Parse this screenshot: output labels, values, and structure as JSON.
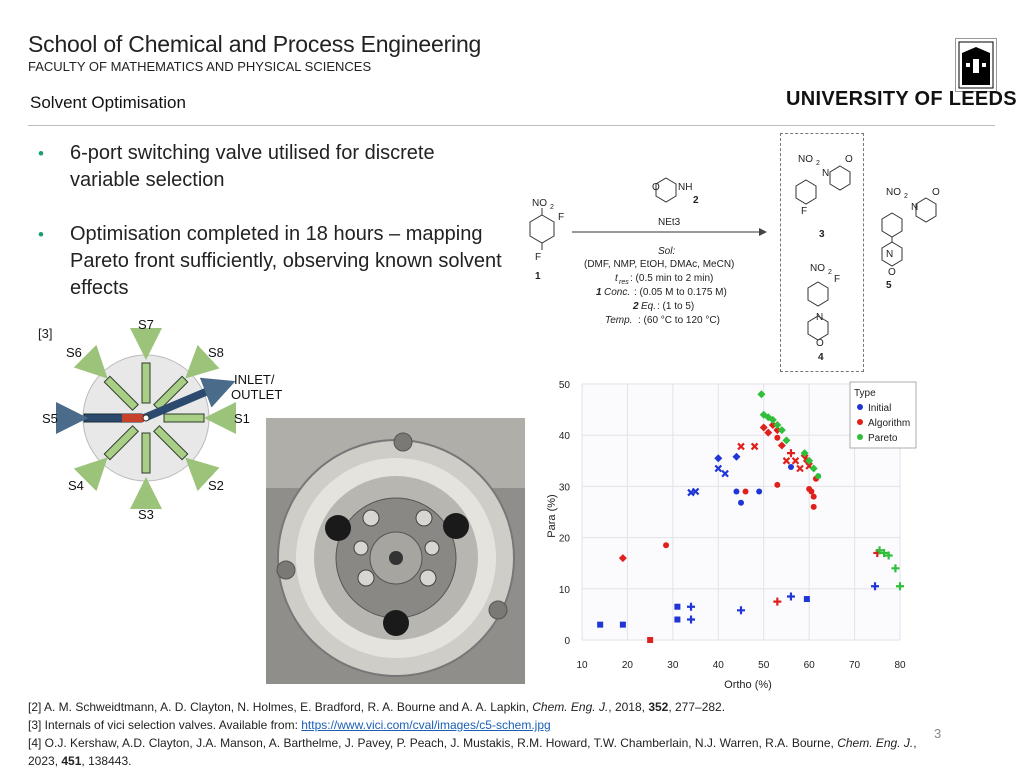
{
  "header": {
    "school": "School of Chemical and Process Engineering",
    "faculty": "FACULTY OF MATHEMATICS AND PHYSICAL SCIENCES",
    "slide_title": "Solvent Optimisation",
    "university": "UNIVERSITY OF LEEDS"
  },
  "bullets": [
    {
      "text": "6-port switching valve utilised for discrete variable selection"
    },
    {
      "text": "Optimisation completed in 18 hours – mapping Pareto front sufficiently, observing known solvent effects"
    }
  ],
  "valve": {
    "ref": "[3]",
    "ports": [
      "S7",
      "S8",
      "S1",
      "S2",
      "S3",
      "S4",
      "S5",
      "S6"
    ],
    "inlet_label_1": "INLET/",
    "inlet_label_2": "OUTLET"
  },
  "reaction": {
    "reagent_label": "2",
    "base": "NEt3",
    "sol": "Sol:",
    "solvents": "(DMF, NMP, EtOH, DMAc, MeCN)",
    "tres": "t",
    "tres_sub": "res",
    "tres_val": ": (0.5 min to 2 min)",
    "conc_num": "1",
    "conc_label": "Conc.",
    "conc_val": ": (0.05 M to 0.175 M)",
    "eq_num": "2",
    "eq_label": "Eq.",
    "eq_val": ": (1 to 5)",
    "temp_label": "Temp.",
    "temp_val": ": (60 °C to 120 °C)",
    "sm_label": "1",
    "p3_label": "3",
    "p4_label": "4",
    "p5_label": "5",
    "no2": "NO",
    "no2_sub": "2",
    "f": "F",
    "nh": "NH",
    "o": "O",
    "n": "N"
  },
  "references": {
    "r2_a": "[2] A. M. Schweidtmann, A. D. Clayton, N. Holmes, E. Bradford, R. A. Bourne and A. A. Lapkin, ",
    "r2_j": "Chem. Eng. J.",
    "r2_b": ", 2018, ",
    "r2_v": "352",
    "r2_c": ", 277–282.",
    "r3_a": "[3] Internals of vici selection valves. Available from: ",
    "r3_link": "https://www.vici.com/cval/images/c5-schem.jpg",
    "r4_a": "[4] O.J. Kershaw, A.D. Clayton, J.A. Manson, A. Barthelme, J. Pavey, P. Peach, J. Mustakis, R.M. Howard, T.W. Chamberlain, N.J. Warren, R.A. Bourne, ",
    "r4_j": "Chem. Eng. J.",
    "r4_b": ", 2023, ",
    "r4_v": "451",
    "r4_c": ", 138443."
  },
  "page_number": "3",
  "colors": {
    "initial": "#1f35d6",
    "algorithm": "#e0211b",
    "pareto": "#2fbf3a",
    "bullet": "#1e9e6e"
  },
  "chart_data": {
    "type": "scatter",
    "xlabel": "Ortho (%)",
    "ylabel": "Para (%)",
    "xlim": [
      10,
      80
    ],
    "ylim": [
      0,
      50
    ],
    "xticks": [
      10,
      20,
      30,
      40,
      50,
      60,
      70,
      80
    ],
    "yticks": [
      0,
      10,
      20,
      30,
      40,
      50
    ],
    "grid": true,
    "legend_title": "Type",
    "legend_position": "top-right",
    "series": [
      {
        "name": "Initial",
        "color": "#1f35d6",
        "points": [
          {
            "x": 14,
            "y": 3,
            "m": "square"
          },
          {
            "x": 19,
            "y": 3,
            "m": "square"
          },
          {
            "x": 31,
            "y": 6.5,
            "m": "square"
          },
          {
            "x": 31,
            "y": 4,
            "m": "square"
          },
          {
            "x": 34,
            "y": 6.5,
            "m": "cross"
          },
          {
            "x": 34,
            "y": 4,
            "m": "cross"
          },
          {
            "x": 34,
            "y": 28.8,
            "m": "x"
          },
          {
            "x": 35,
            "y": 29,
            "m": "x"
          },
          {
            "x": 40,
            "y": 35.5,
            "m": "diamond"
          },
          {
            "x": 40,
            "y": 33.5,
            "m": "x"
          },
          {
            "x": 41.5,
            "y": 32.5,
            "m": "x"
          },
          {
            "x": 44,
            "y": 35.8,
            "m": "diamond"
          },
          {
            "x": 44,
            "y": 29,
            "m": "circle"
          },
          {
            "x": 45,
            "y": 26.8,
            "m": "circle"
          },
          {
            "x": 45,
            "y": 5.8,
            "m": "cross"
          },
          {
            "x": 49,
            "y": 29,
            "m": "circle"
          },
          {
            "x": 56,
            "y": 8.5,
            "m": "cross"
          },
          {
            "x": 59.5,
            "y": 8,
            "m": "square"
          },
          {
            "x": 74.5,
            "y": 10.5,
            "m": "cross"
          },
          {
            "x": 56,
            "y": 33.8,
            "m": "circle"
          }
        ]
      },
      {
        "name": "Algorithm",
        "color": "#e0211b",
        "points": [
          {
            "x": 19,
            "y": 16,
            "m": "diamond"
          },
          {
            "x": 25,
            "y": 0,
            "m": "square"
          },
          {
            "x": 28.5,
            "y": 18.5,
            "m": "circle"
          },
          {
            "x": 45,
            "y": 37.8,
            "m": "x"
          },
          {
            "x": 46,
            "y": 29,
            "m": "circle"
          },
          {
            "x": 48,
            "y": 37.8,
            "m": "x"
          },
          {
            "x": 50,
            "y": 41.5,
            "m": "diamond"
          },
          {
            "x": 51,
            "y": 40.5,
            "m": "diamond"
          },
          {
            "x": 52,
            "y": 42,
            "m": "diamond"
          },
          {
            "x": 53,
            "y": 41,
            "m": "diamond"
          },
          {
            "x": 53,
            "y": 39.5,
            "m": "circle"
          },
          {
            "x": 54,
            "y": 38,
            "m": "diamond"
          },
          {
            "x": 53,
            "y": 30.3,
            "m": "circle"
          },
          {
            "x": 53,
            "y": 7.5,
            "m": "cross"
          },
          {
            "x": 55,
            "y": 35,
            "m": "x"
          },
          {
            "x": 56,
            "y": 36.5,
            "m": "cross"
          },
          {
            "x": 57,
            "y": 35,
            "m": "x"
          },
          {
            "x": 58,
            "y": 33.5,
            "m": "x"
          },
          {
            "x": 59,
            "y": 36,
            "m": "diamond"
          },
          {
            "x": 59.5,
            "y": 35,
            "m": "diamond"
          },
          {
            "x": 60,
            "y": 34,
            "m": "x"
          },
          {
            "x": 60,
            "y": 29.5,
            "m": "circle"
          },
          {
            "x": 60.5,
            "y": 29,
            "m": "circle"
          },
          {
            "x": 61,
            "y": 28,
            "m": "circle"
          },
          {
            "x": 61,
            "y": 26,
            "m": "circle"
          },
          {
            "x": 61.5,
            "y": 31.5,
            "m": "circle"
          },
          {
            "x": 75,
            "y": 17,
            "m": "cross"
          }
        ]
      },
      {
        "name": "Pareto",
        "color": "#2fbf3a",
        "points": [
          {
            "x": 49.5,
            "y": 48,
            "m": "diamond"
          },
          {
            "x": 50,
            "y": 44,
            "m": "diamond"
          },
          {
            "x": 51,
            "y": 43.5,
            "m": "diamond"
          },
          {
            "x": 52,
            "y": 43,
            "m": "diamond"
          },
          {
            "x": 53,
            "y": 42,
            "m": "diamond"
          },
          {
            "x": 54,
            "y": 41,
            "m": "diamond"
          },
          {
            "x": 55,
            "y": 39,
            "m": "diamond"
          },
          {
            "x": 59,
            "y": 36.5,
            "m": "diamond"
          },
          {
            "x": 60,
            "y": 35,
            "m": "diamond"
          },
          {
            "x": 61,
            "y": 33.5,
            "m": "diamond"
          },
          {
            "x": 62,
            "y": 32,
            "m": "circle"
          },
          {
            "x": 75.5,
            "y": 17.5,
            "m": "cross"
          },
          {
            "x": 76.5,
            "y": 17,
            "m": "cross"
          },
          {
            "x": 77.5,
            "y": 16.5,
            "m": "cross"
          },
          {
            "x": 79,
            "y": 14,
            "m": "cross"
          },
          {
            "x": 80,
            "y": 10.5,
            "m": "cross"
          }
        ]
      }
    ]
  }
}
